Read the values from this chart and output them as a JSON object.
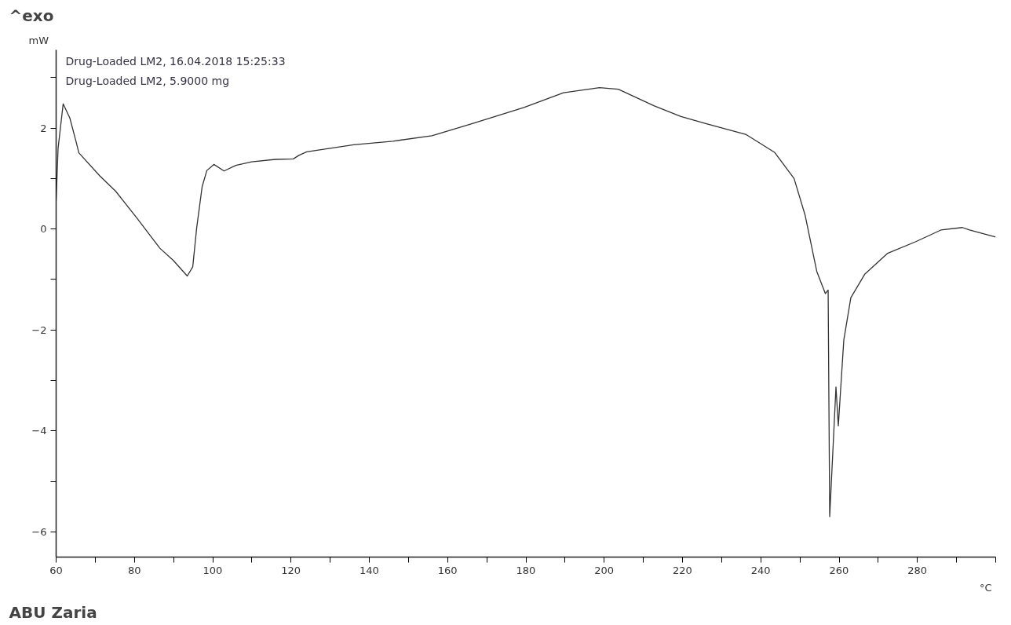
{
  "chart_data": {
    "type": "line",
    "title": "^exo",
    "xlabel": "°C",
    "ylabel": "mW",
    "annotations": [
      "Drug-Loaded LM2, 16.04.2018 15:25:33",
      "Drug-Loaded LM2, 5.9000 mg",
      "ABU Zaria"
    ],
    "xlim": [
      60,
      300
    ],
    "ylim": [
      -6.5,
      3.55
    ],
    "xticks": [
      60,
      {
        "value": 70,
        "label": null
      },
      80,
      {
        "value": 90,
        "label": null
      },
      100,
      {
        "value": 110,
        "label": null
      },
      120,
      {
        "value": 130,
        "label": null
      },
      140,
      {
        "value": 150,
        "label": null
      },
      160,
      {
        "value": 170,
        "label": null
      },
      180,
      {
        "value": 190,
        "label": null
      },
      200,
      {
        "value": 210,
        "label": null
      },
      220,
      {
        "value": 230,
        "label": null
      },
      240,
      {
        "value": 250,
        "label": null
      },
      260,
      {
        "value": 270,
        "label": null
      },
      280,
      {
        "value": 290,
        "label": null
      },
      {
        "value": 300,
        "label": null
      }
    ],
    "yticks": [
      -6,
      {
        "value": -5,
        "label": null
      },
      -4,
      {
        "value": -3,
        "label": null
      },
      -2,
      {
        "value": -1,
        "label": null
      },
      0,
      {
        "value": 1,
        "label": null
      },
      2,
      {
        "value": 3,
        "label": null
      }
    ],
    "grid": false,
    "marker": "none",
    "line_style": "solid",
    "series": [
      {
        "color": "#333333",
        "x": [
          60,
          60.5,
          61.8,
          63.5,
          65.2,
          65.8,
          71.2,
          75.2,
          80.5,
          86.5,
          89.9,
          93.5,
          94.9,
          95.9,
          97.3,
          98.5,
          100.3,
          102.9,
          105.9,
          109.9,
          116,
          120.6,
          122,
          124,
          130,
          136,
          146,
          156,
          166,
          179.5,
          189.6,
          198.8,
          203.6,
          212.8,
          219.6,
          226.3,
          236.3,
          243.5,
          248.5,
          251.3,
          254.3,
          256.5,
          257.2,
          257.6,
          259.2,
          259.8,
          261.2,
          263,
          266.6,
          272.4,
          279.6,
          286,
          291.5,
          293.3,
          300
        ],
        "values": [
          0.56,
          1.6,
          2.48,
          2.2,
          1.7,
          1.51,
          1.05,
          0.75,
          0.23,
          -0.38,
          -0.62,
          -0.93,
          -0.75,
          0.02,
          0.84,
          1.16,
          1.28,
          1.15,
          1.26,
          1.33,
          1.38,
          1.39,
          1.46,
          1.53,
          1.6,
          1.67,
          1.74,
          1.85,
          2.08,
          2.41,
          2.7,
          2.8,
          2.77,
          2.44,
          2.23,
          2.08,
          1.87,
          1.52,
          1.0,
          0.28,
          -0.84,
          -1.28,
          -1.21,
          -5.7,
          -3.13,
          -3.9,
          -2.2,
          -1.36,
          -0.89,
          -0.48,
          -0.25,
          -0.02,
          0.03,
          -0.02,
          -0.16
        ]
      }
    ]
  }
}
